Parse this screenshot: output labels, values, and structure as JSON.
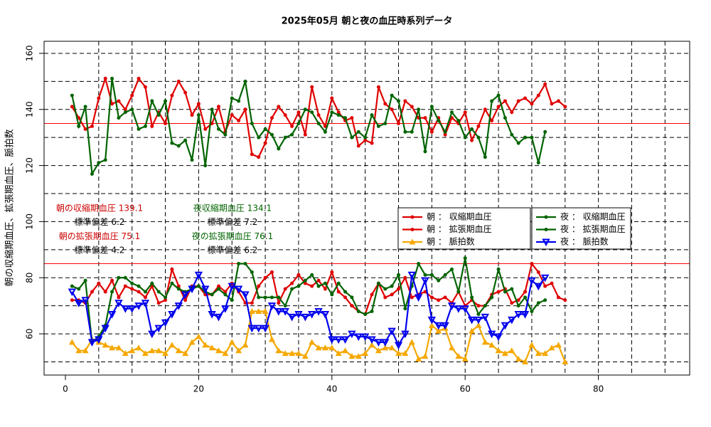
{
  "chart_data": {
    "type": "line",
    "title": "2025年05月 朝と夜の血圧時系列データ",
    "y_label": "朝の収縮期血圧、拡張期血圧、脈拍数",
    "x": [
      1,
      2,
      3,
      4,
      5,
      6,
      7,
      8,
      9,
      10,
      11,
      12,
      13,
      14,
      15,
      16,
      17,
      18,
      19,
      20,
      21,
      22,
      23,
      24,
      25,
      26,
      27,
      28,
      29,
      30,
      31,
      32,
      33,
      34,
      35,
      36,
      37,
      38,
      39,
      40,
      41,
      42,
      43,
      44,
      45,
      46,
      47,
      48,
      49,
      50,
      51,
      52,
      53,
      54,
      55,
      56,
      57,
      58,
      59,
      60,
      61,
      62,
      63,
      64,
      65,
      66,
      67,
      68,
      69,
      70,
      71,
      72,
      73,
      74,
      75
    ],
    "xlim": [
      -3.2,
      93.7
    ],
    "ylim": [
      45.3,
      164.3
    ],
    "xticks": [
      0,
      20,
      40,
      60,
      80
    ],
    "yticks": [
      60,
      80,
      100,
      120,
      140,
      160
    ],
    "grid": true,
    "grid_x": [
      5,
      10,
      15,
      20,
      25,
      30,
      35,
      40,
      45,
      50,
      55,
      60,
      65,
      70,
      75,
      80,
      85,
      90
    ],
    "grid_y": [
      50,
      60,
      70,
      80,
      90,
      100,
      110,
      120,
      130,
      140,
      150,
      160
    ],
    "hlines": [
      135,
      85
    ],
    "hline_color": "#ff0000",
    "series": [
      {
        "name": "朝 ： 収縮期血圧",
        "color": "#e00000",
        "marker": "circle",
        "legend": "morning",
        "values": [
          141,
          137,
          133,
          134,
          144,
          151,
          142,
          143,
          140,
          145,
          151,
          148,
          134,
          139,
          135,
          145,
          150,
          146,
          138,
          142,
          133,
          135,
          141,
          132,
          138,
          136,
          140,
          124,
          123,
          128,
          137,
          141,
          138,
          134,
          139,
          131,
          148,
          138,
          134,
          144,
          139,
          136,
          137,
          127,
          129,
          128,
          148,
          142,
          140,
          135,
          143,
          141,
          137,
          137,
          132,
          137,
          131,
          137,
          135,
          139,
          129,
          134,
          140,
          136,
          141,
          143,
          139,
          143,
          144,
          142,
          145,
          149,
          142,
          143,
          141
        ]
      },
      {
        "name": "朝 ： 拡張期血圧",
        "color": "#e00000",
        "marker": "circle",
        "legend": "morning",
        "values": [
          72,
          72,
          71,
          75,
          78,
          75,
          79,
          73,
          77,
          76,
          75,
          73,
          77,
          71,
          72,
          83,
          77,
          72,
          77,
          77,
          74,
          74,
          77,
          75,
          78,
          75,
          71,
          71,
          77,
          80,
          82,
          71,
          76,
          78,
          81,
          78,
          77,
          79,
          76,
          82,
          75,
          73,
          70,
          68,
          67,
          74,
          78,
          73,
          74,
          76,
          80,
          73,
          74,
          75,
          73,
          72,
          73,
          71,
          75,
          70,
          72,
          70,
          70,
          74,
          75,
          76,
          71,
          72,
          75,
          85,
          82,
          77,
          78,
          73,
          72
        ]
      },
      {
        "name": "朝 ： 脈拍数",
        "color": "#f5a800",
        "marker": "triangle-up",
        "legend": "morning",
        "values": [
          57,
          54,
          54,
          58,
          57,
          56,
          55,
          55,
          53,
          54,
          55,
          53,
          54,
          54,
          53,
          56,
          54,
          53,
          57,
          59,
          56,
          55,
          54,
          53,
          57,
          54,
          56,
          68,
          68,
          68,
          58,
          54,
          53,
          53,
          53,
          52,
          57,
          55,
          55,
          55,
          53,
          54,
          52,
          52,
          53,
          56,
          54,
          55,
          55,
          53,
          53,
          57,
          51,
          52,
          63,
          61,
          62,
          55,
          52,
          51,
          61,
          63,
          57,
          56,
          54,
          53,
          54,
          51,
          50,
          56,
          53,
          53,
          55,
          56,
          50
        ]
      },
      {
        "name": "夜 ： 収縮期血圧",
        "color": "#006400",
        "marker": "circle",
        "legend": "night",
        "values": [
          145,
          134,
          141,
          117,
          121,
          122,
          151,
          137,
          139,
          140,
          133,
          134,
          143,
          138,
          143,
          128,
          127,
          129,
          122,
          138,
          120,
          140,
          133,
          131,
          144,
          143,
          150,
          135,
          130,
          133,
          131,
          126,
          130,
          131,
          135,
          140,
          139,
          135,
          132,
          139,
          138,
          137,
          130,
          132,
          130,
          138,
          134,
          135,
          145,
          143,
          132,
          132,
          140,
          125,
          141,
          136,
          132,
          139,
          136,
          130,
          133,
          130,
          123,
          143,
          145,
          137,
          131,
          128,
          130,
          130,
          121,
          132,
          null,
          null,
          null
        ]
      },
      {
        "name": "夜 ： 拡張期血圧",
        "color": "#006400",
        "marker": "circle",
        "legend": "night",
        "values": [
          77,
          76,
          79,
          57,
          59,
          63,
          75,
          80,
          80,
          78,
          77,
          75,
          78,
          75,
          73,
          78,
          76,
          75,
          76,
          77,
          75,
          74,
          76,
          74,
          72,
          85,
          85,
          82,
          73,
          73,
          73,
          73,
          70,
          76,
          77,
          79,
          81,
          77,
          78,
          74,
          78,
          75,
          73,
          68,
          67,
          68,
          78,
          76,
          77,
          81,
          69,
          77,
          85,
          81,
          81,
          79,
          81,
          83,
          75,
          87,
          73,
          67,
          70,
          73,
          83,
          75,
          76,
          70,
          73,
          68,
          71,
          72,
          null,
          null,
          null
        ]
      },
      {
        "name": "夜 ： 脈拍数",
        "color": "#0000ee",
        "marker": "triangle-down",
        "legend": "night",
        "values": [
          75,
          71,
          72,
          57,
          58,
          62,
          67,
          71,
          69,
          69,
          70,
          71,
          60,
          62,
          64,
          67,
          70,
          74,
          76,
          81,
          76,
          67,
          66,
          69,
          77,
          76,
          74,
          62,
          62,
          62,
          70,
          68,
          68,
          66,
          67,
          66,
          67,
          68,
          67,
          58,
          58,
          58,
          60,
          59,
          59,
          58,
          57,
          57,
          61,
          56,
          60,
          81,
          73,
          79,
          65,
          63,
          63,
          70,
          69,
          69,
          65,
          65,
          66,
          60,
          59,
          63,
          65,
          67,
          67,
          79,
          77,
          80,
          null,
          null,
          null
        ]
      }
    ],
    "annotations": [
      {
        "text": "朝の収縮期血圧 139.1",
        "color": "#cc0000"
      },
      {
        "text": "標準偏差 6.2",
        "color": "#000000"
      },
      {
        "text": "朝の拡張期血圧 75.1",
        "color": "#cc0000"
      },
      {
        "text": "標準偏差 4.2",
        "color": "#000000"
      },
      {
        "text": "夜収縮期血圧 134.1",
        "color": "#006400"
      },
      {
        "text": "標準偏差 7.2",
        "color": "#000000"
      },
      {
        "text": "夜の拡張期血圧 76.1",
        "color": "#006400"
      },
      {
        "text": "標準偏差 6.2",
        "color": "#000000"
      }
    ]
  }
}
